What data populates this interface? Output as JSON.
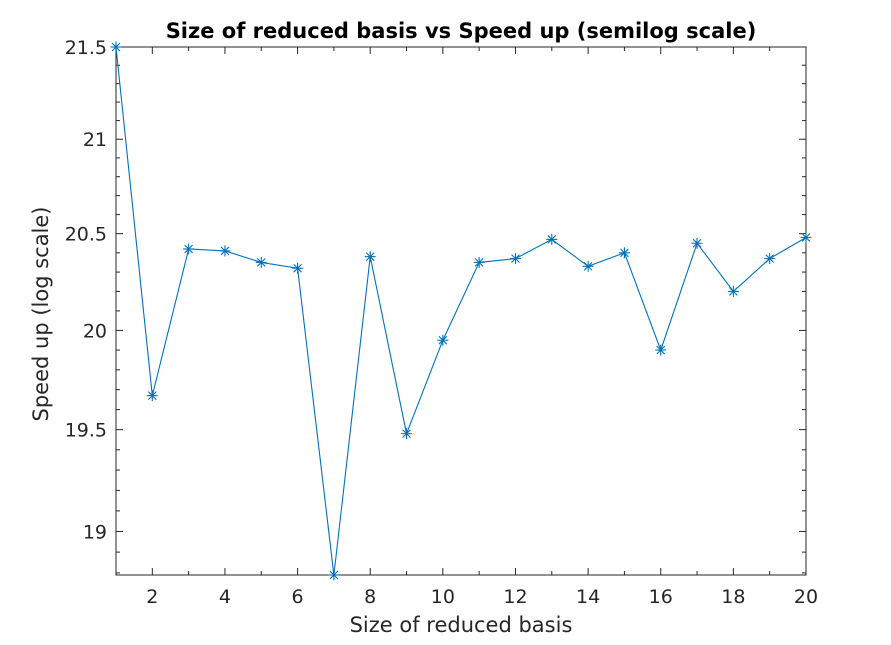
{
  "chart_data": {
    "type": "line",
    "title": "Size of reduced basis vs Speed up (semilog scale)",
    "xlabel": "Size of reduced basis",
    "ylabel": "Speed up (log scale)",
    "xlim": [
      1,
      20
    ],
    "ylim": [
      18.79,
      21.5
    ],
    "y_scale": "log",
    "grid": false,
    "marker": "asterisk",
    "line_color": "#0072BD",
    "x_ticks": [
      2,
      4,
      6,
      8,
      10,
      12,
      14,
      16,
      18,
      20
    ],
    "x_tick_labels": [
      "2",
      "4",
      "6",
      "8",
      "10",
      "12",
      "14",
      "16",
      "18",
      "20"
    ],
    "y_ticks": [
      19,
      19.5,
      20,
      20.5,
      21,
      21.5
    ],
    "y_tick_labels": [
      "19",
      "19.5",
      "20",
      "20.5",
      "21",
      "21.5"
    ],
    "series": [
      {
        "x": [
          1,
          2,
          3,
          4,
          5,
          6,
          7,
          8,
          9,
          10,
          11,
          12,
          13,
          14,
          15,
          16,
          17,
          18,
          19,
          20
        ],
        "values": [
          21.5,
          19.67,
          20.42,
          20.41,
          20.35,
          20.32,
          18.79,
          20.38,
          19.48,
          19.95,
          20.35,
          20.37,
          20.47,
          20.33,
          20.4,
          19.9,
          20.45,
          20.2,
          20.37,
          20.48
        ]
      }
    ]
  }
}
